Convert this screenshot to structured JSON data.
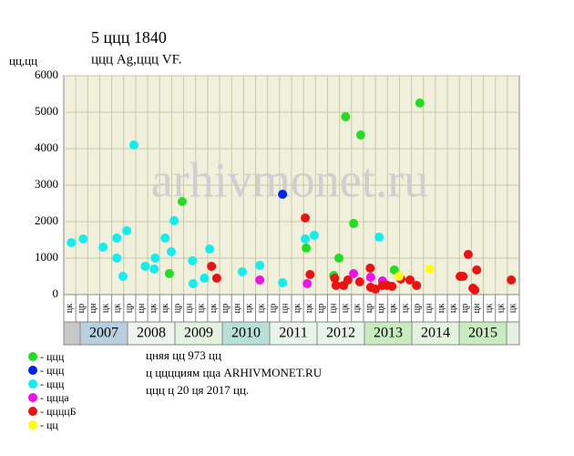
{
  "chart_data": {
    "type": "scatter",
    "title": "5 ццц 1840",
    "subtitle": "ццц Ag,ццц VF.",
    "y_label": "цц,цц",
    "watermark": "arhivmonet.ru",
    "xlim": [
      2006.65,
      2016.27
    ],
    "ylim": [
      0,
      6000
    ],
    "yticks": [
      0,
      1000,
      2000,
      3000,
      4000,
      5000,
      6000
    ],
    "grid": true,
    "column_labels": [
      "цк",
      "цр",
      "цн",
      "цк",
      "цк",
      "цр",
      "цн",
      "цк",
      "цк",
      "цр",
      "цн",
      "цк",
      "цк",
      "цр",
      "цн",
      "цк",
      "цк",
      "цр",
      "цн",
      "цк",
      "цк",
      "цр",
      "цн",
      "цк",
      "цк",
      "цр",
      "цн",
      "цк",
      "цк",
      "цр",
      "цн",
      "цк",
      "цк",
      "цр",
      "цн",
      "цк",
      "цк",
      "цк"
    ],
    "years": [
      "2007",
      "2008",
      "2009",
      "2010",
      "2011",
      "2012",
      "2013",
      "2014",
      "2015"
    ],
    "year_colors": [
      "#b8cfe0",
      "#eef5ee",
      "#e4f2e0",
      "#b8e0d6",
      "#e8f4e8",
      "#e8f4e8",
      "#c8ecc0",
      "#e4f2e0",
      "#c8ecc0"
    ],
    "series": [
      {
        "name": "- ццц",
        "color": "#22dd22",
        "x": [
          2008.88,
          2009.15,
          2011.77,
          2012.35,
          2012.46,
          2012.6,
          2012.77,
          2012.92,
          2013.63,
          2014.17
        ],
        "values": [
          575,
          2550,
          1275,
          525,
          1000,
          4875,
          1950,
          4375,
          675,
          5250
        ]
      },
      {
        "name": "- ццц",
        "color": "#0022ee",
        "x": [
          2011.27
        ],
        "values": [
          2750
        ]
      },
      {
        "name": "- ццц",
        "color": "#11eeee",
        "x": [
          2006.81,
          2007.06,
          2007.48,
          2007.77,
          2007.77,
          2007.9,
          2007.98,
          2008.13,
          2008.37,
          2008.58,
          2008.56,
          2008.79,
          2008.92,
          2008.98,
          2009.37,
          2009.38,
          2009.62,
          2009.73,
          2010.42,
          2010.79,
          2011.27,
          2011.75,
          2011.94,
          2013.31
        ],
        "values": [
          1425,
          1525,
          1300,
          1000,
          1550,
          500,
          1750,
          4100,
          775,
          1000,
          700,
          1550,
          1175,
          2025,
          925,
          300,
          450,
          1250,
          625,
          800,
          325,
          1525,
          1625,
          1575
        ]
      },
      {
        "name": "- ццца",
        "color": "#ee11ee",
        "x": [
          2010.79,
          2011.79,
          2012.77,
          2013.13,
          2013.38
        ],
        "values": [
          400,
          300,
          575,
          475,
          375
        ]
      },
      {
        "name": "- ццццБ",
        "color": "#ee1111",
        "x": [
          2009.77,
          2009.88,
          2011.75,
          2011.85,
          2012.37,
          2012.4,
          2012.56,
          2012.65,
          2012.9,
          2013.12,
          2013.13,
          2013.23,
          2013.38,
          2013.48,
          2013.58,
          2013.77,
          2013.96,
          2014.1,
          2015.02,
          2015.08,
          2015.19,
          2015.29,
          2015.33,
          2015.37,
          2016.1
        ],
        "values": [
          775,
          450,
          2100,
          550,
          450,
          250,
          250,
          400,
          350,
          725,
          200,
          150,
          250,
          250,
          225,
          425,
          400,
          250,
          500,
          500,
          1100,
          175,
          125,
          675,
          400
        ]
      },
      {
        "name": "- цц",
        "color": "#ffff00",
        "x": [
          2013.73,
          2014.38
        ],
        "values": [
          500,
          700
        ]
      }
    ],
    "notes": [
      "цняя цц 973 цц",
      "ц цццциям цца ARHIVMONET.RU",
      "ццц ц 20 ця 2017 цц."
    ]
  }
}
